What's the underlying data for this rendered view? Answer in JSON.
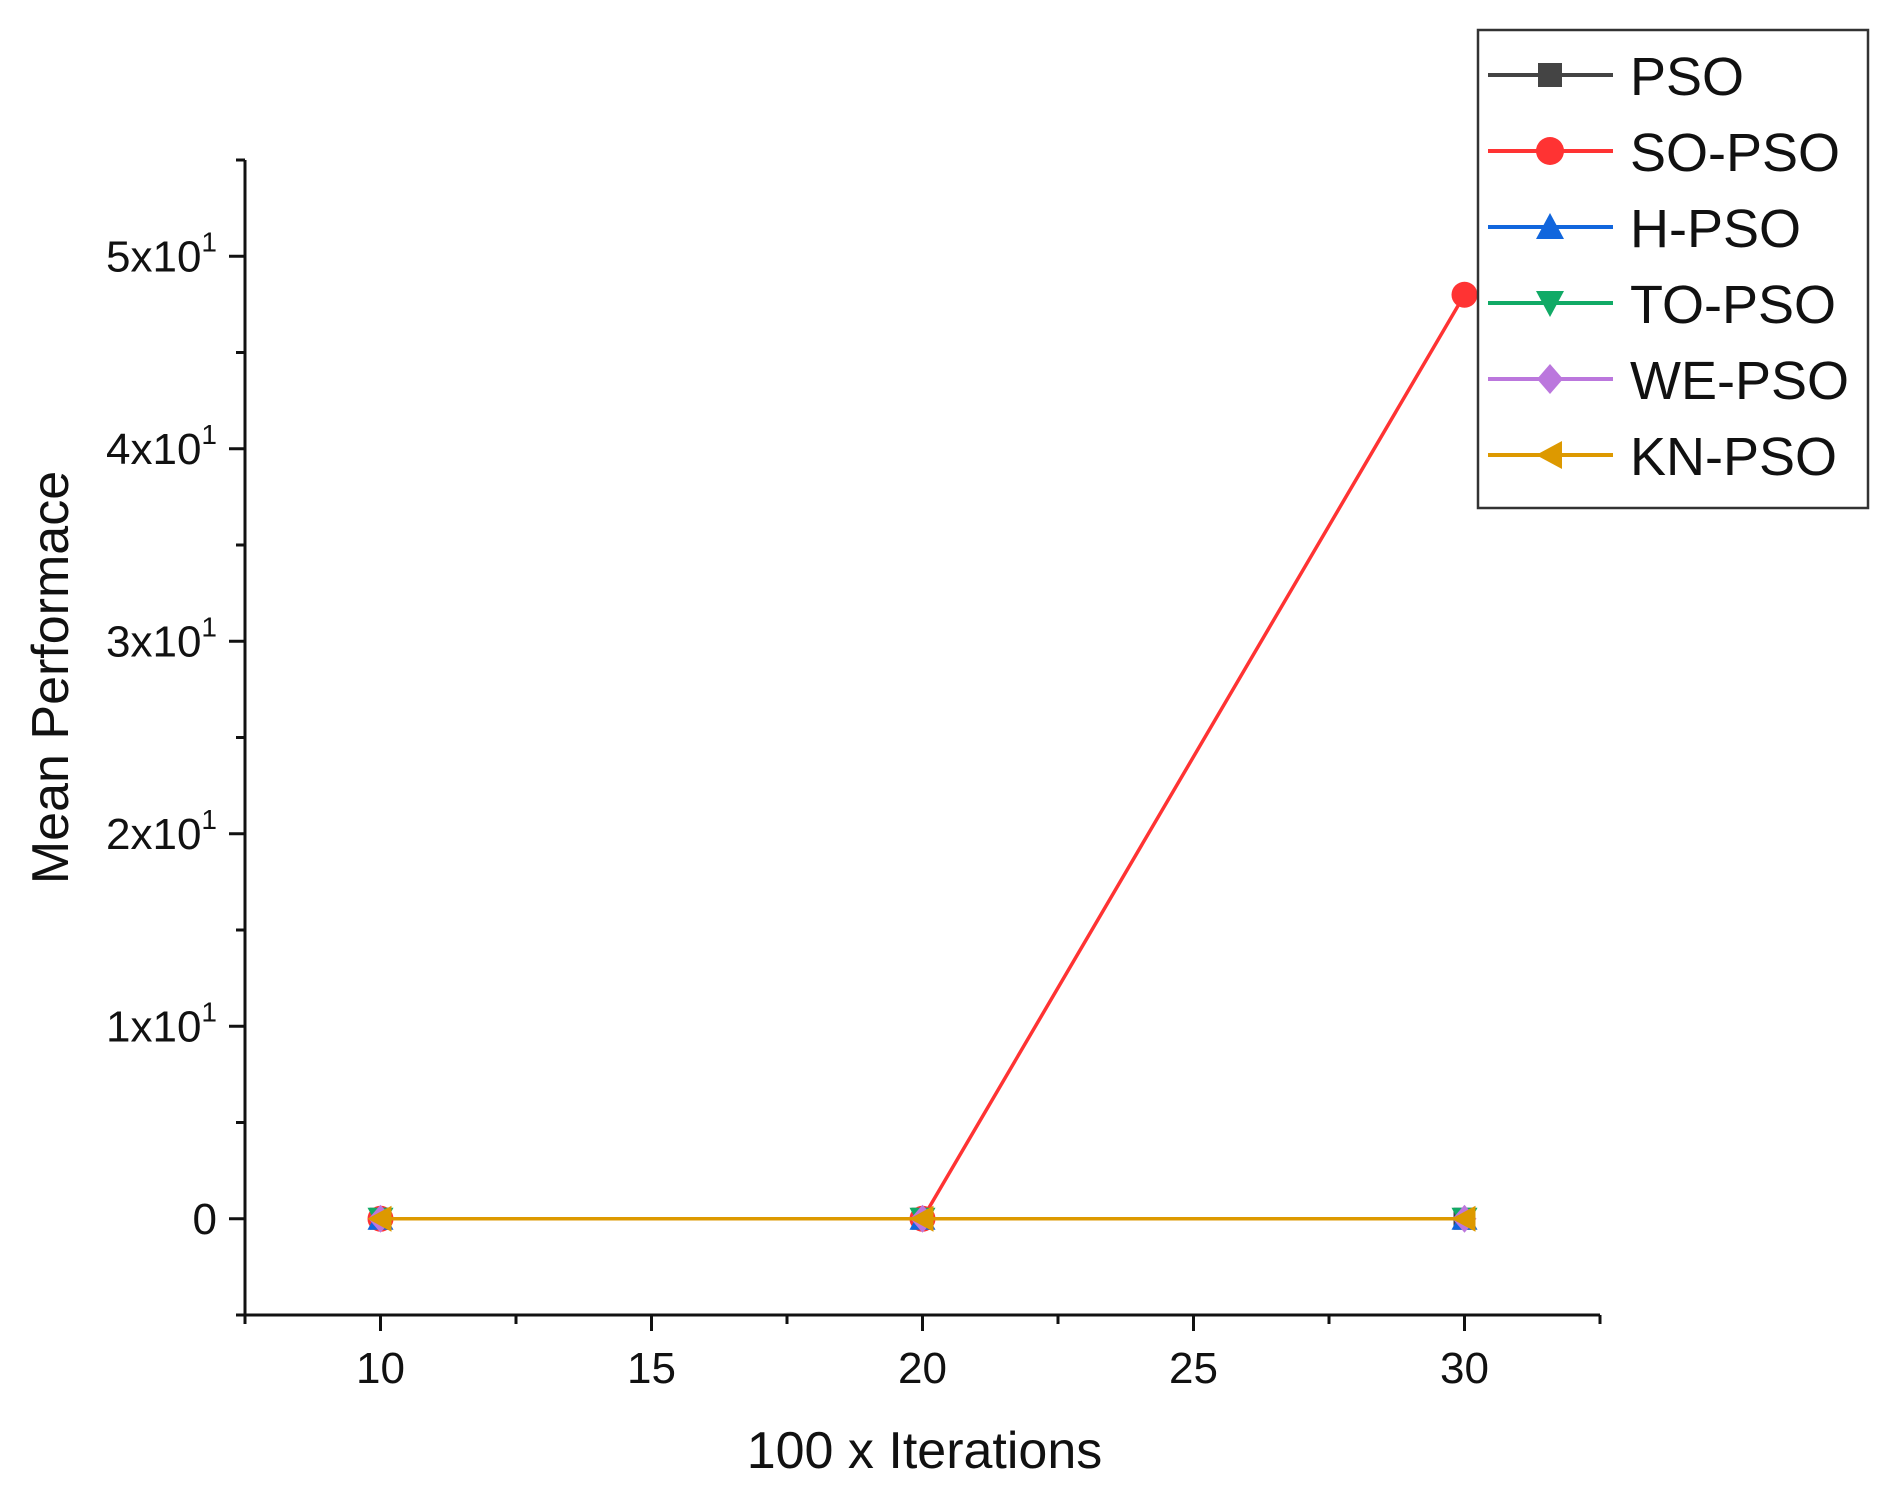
{
  "chart_data": {
    "type": "line",
    "title": "",
    "xlabel": "100 x Iterations",
    "ylabel": "Mean Performace",
    "xlim": [
      7.5,
      32.5
    ],
    "ylim": [
      -5,
      55
    ],
    "x_ticks": [
      {
        "value": 10,
        "label": "10"
      },
      {
        "value": 15,
        "label": "15"
      },
      {
        "value": 20,
        "label": "20"
      },
      {
        "value": 25,
        "label": "25"
      },
      {
        "value": 30,
        "label": "30"
      }
    ],
    "y_ticks": [
      {
        "value": 0,
        "mantissa": "0",
        "base": "",
        "exp": ""
      },
      {
        "value": 10,
        "mantissa": "1x10",
        "base": "",
        "exp": "1"
      },
      {
        "value": 20,
        "mantissa": "2x10",
        "base": "",
        "exp": "1"
      },
      {
        "value": 30,
        "mantissa": "3x10",
        "base": "",
        "exp": "1"
      },
      {
        "value": 40,
        "mantissa": "4x10",
        "base": "",
        "exp": "1"
      },
      {
        "value": 50,
        "mantissa": "5x10",
        "base": "",
        "exp": "1"
      }
    ],
    "legend_position": "top-right",
    "series": [
      {
        "name": "PSO",
        "marker": "square",
        "color": "#444444",
        "x": [
          10,
          20,
          30
        ],
        "y": [
          0,
          0,
          0
        ]
      },
      {
        "name": "SO-PSO",
        "marker": "circle",
        "color": "#ff3333",
        "x": [
          10,
          20,
          30
        ],
        "y": [
          0,
          0,
          48
        ]
      },
      {
        "name": "H-PSO",
        "marker": "triangle-up",
        "color": "#1166dd",
        "x": [
          10,
          20,
          30
        ],
        "y": [
          0,
          0,
          0
        ]
      },
      {
        "name": "TO-PSO",
        "marker": "triangle-down",
        "color": "#11aa66",
        "x": [
          10,
          20,
          30
        ],
        "y": [
          0,
          0,
          0
        ]
      },
      {
        "name": "WE-PSO",
        "marker": "diamond",
        "color": "#bb77dd",
        "x": [
          10,
          20,
          30
        ],
        "y": [
          0,
          0,
          0
        ]
      },
      {
        "name": "KN-PSO",
        "marker": "triangle-left",
        "color": "#dd9900",
        "x": [
          10,
          20,
          30
        ],
        "y": [
          0,
          0,
          0
        ]
      }
    ]
  }
}
